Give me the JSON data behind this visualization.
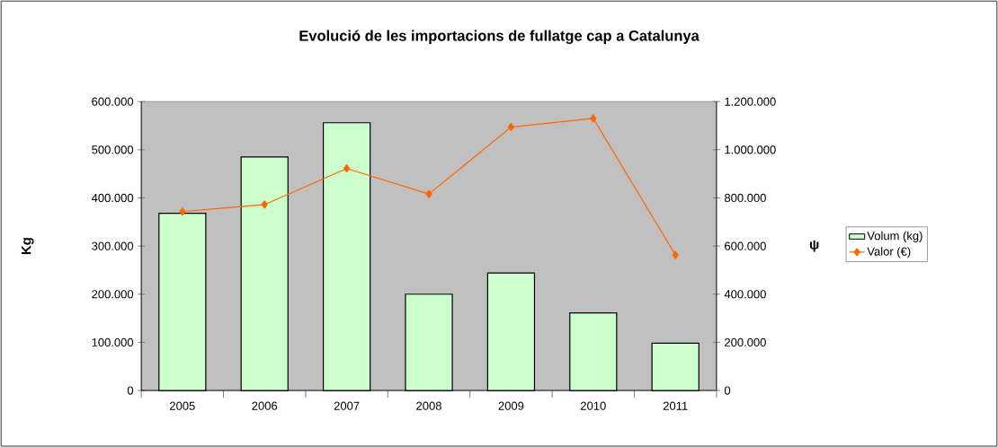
{
  "chart_data": {
    "type": "bar",
    "title": "Evolució de les importacions de fullatge cap a Catalunya",
    "ylabel": "Kg",
    "y2label": "ψ",
    "categories": [
      "2005",
      "2006",
      "2007",
      "2008",
      "2009",
      "2010",
      "2011"
    ],
    "series": [
      {
        "name": "Volum (kg)",
        "color": "#ccffcc",
        "values": [
          368000,
          485000,
          556000,
          200000,
          244000,
          161000,
          98000
        ]
      },
      {
        "name": "Valor (€)",
        "type": "line",
        "axis": "y2",
        "color": "#ff6600",
        "values": [
          743000,
          772000,
          922000,
          816000,
          1094000,
          1130000,
          563000
        ]
      }
    ],
    "ylim": [
      0,
      600000
    ],
    "yticks": [
      {
        "value": 0,
        "label": "0"
      },
      {
        "value": 100000,
        "label": "100.000"
      },
      {
        "value": 200000,
        "label": "200.000"
      },
      {
        "value": 300000,
        "label": "300.000"
      },
      {
        "value": 400000,
        "label": "400.000"
      },
      {
        "value": 500000,
        "label": "500.000"
      },
      {
        "value": 600000,
        "label": "600.000"
      }
    ],
    "y2lim": [
      0,
      1200000
    ],
    "y2ticks": [
      {
        "value": 0,
        "label": "0"
      },
      {
        "value": 200000,
        "label": "200.000"
      },
      {
        "value": 400000,
        "label": "400.000"
      },
      {
        "value": 600000,
        "label": "600.000"
      },
      {
        "value": 800000,
        "label": "800.000"
      },
      {
        "value": 1000000,
        "label": "1.000.000"
      },
      {
        "value": 1200000,
        "label": "1.200.000"
      }
    ],
    "legend": "right",
    "marker": "diamond",
    "line_style": "solid"
  }
}
